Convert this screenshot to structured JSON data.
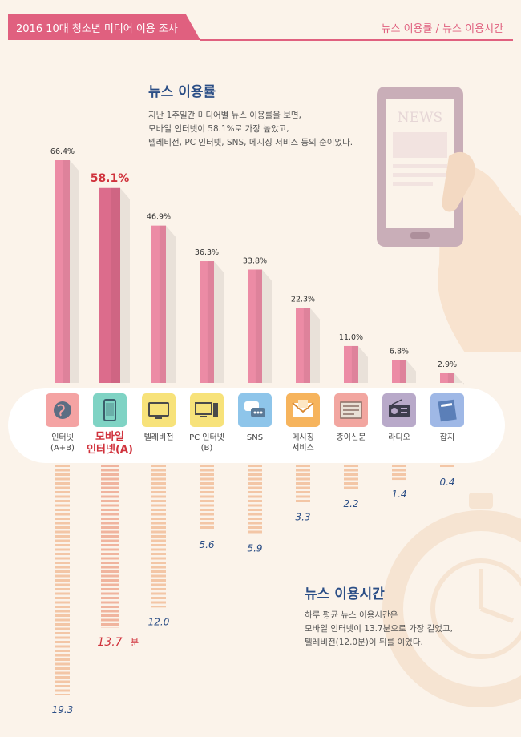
{
  "header": {
    "title": "2016 10대 청소년 미디어 이용 조사",
    "right": "뉴스 이용률 / 뉴스 이용시간"
  },
  "colors": {
    "accent": "#e0607f",
    "title_blue": "#2b4e86",
    "highlight_red": "#d0323c",
    "bar_pink": "#ec8ba5",
    "bar_pink_dark": "#dc6c8c",
    "stripe": "#f3c6a6"
  },
  "usage_section": {
    "title": "뉴스 이용률",
    "desc": [
      "지난 1주일간 미디어별 뉴스 이용률을 보면,",
      "모바일 인터넷이 58.1%로 가장 높았고,",
      "텔레비전, PC 인터넷, SNS, 메시징 서비스 등의 순이었다."
    ],
    "illustration_text": "NEWS"
  },
  "time_section": {
    "title": "뉴스 이용시간",
    "desc": [
      "하루 평균 뉴스 이용시간은",
      "모바일 인터넷이 13.7분으로 가장 길었고,",
      "텔레비전(12.0분)이 뒤를 이었다."
    ],
    "unit": "분"
  },
  "media": [
    {
      "label": [
        "인터넷",
        "(A+B)"
      ],
      "icon": "globe-icon",
      "icon_color": "#f4a3a3"
    },
    {
      "label": [
        "모바일",
        "인터넷(A)"
      ],
      "icon": "smartphone-icon",
      "icon_color": "#7fd3c4",
      "highlight": true
    },
    {
      "label": [
        "텔레비전"
      ],
      "icon": "television-icon",
      "icon_color": "#f7e27a"
    },
    {
      "label": [
        "PC 인터넷",
        "(B)"
      ],
      "icon": "desktop-pc-icon",
      "icon_color": "#f7e27a"
    },
    {
      "label": [
        "SNS"
      ],
      "icon": "chat-bubbles-icon",
      "icon_color": "#8ec5ea"
    },
    {
      "label": [
        "메시징",
        "서비스"
      ],
      "icon": "envelope-icon",
      "icon_color": "#f6b45d"
    },
    {
      "label": [
        "종이신문"
      ],
      "icon": "newspaper-icon",
      "icon_color": "#f2a6a0"
    },
    {
      "label": [
        "라디오"
      ],
      "icon": "radio-icon",
      "icon_color": "#b8a9c9"
    },
    {
      "label": [
        "잡지"
      ],
      "icon": "magazine-icon",
      "icon_color": "#9fb8e6"
    }
  ],
  "chart_data": [
    {
      "type": "bar",
      "title": "뉴스 이용률",
      "categories": [
        "인터넷(A+B)",
        "모바일 인터넷(A)",
        "텔레비전",
        "PC 인터넷(B)",
        "SNS",
        "메시징 서비스",
        "종이신문",
        "라디오",
        "잡지"
      ],
      "values": [
        66.4,
        58.1,
        46.9,
        36.3,
        33.8,
        22.3,
        11.0,
        6.8,
        2.9
      ],
      "value_labels": [
        "66.4%",
        "58.1%",
        "46.9%",
        "36.3%",
        "33.8%",
        "22.3%",
        "11.0%",
        "6.8%",
        "2.9%"
      ],
      "highlight_index": 1,
      "ylim": [
        0,
        66.4
      ]
    },
    {
      "type": "bar",
      "title": "뉴스 이용시간",
      "categories": [
        "인터넷(A+B)",
        "모바일 인터넷(A)",
        "텔레비전",
        "PC 인터넷(B)",
        "SNS",
        "메시징 서비스",
        "종이신문",
        "라디오",
        "잡지"
      ],
      "values": [
        19.3,
        13.7,
        12.0,
        5.6,
        5.9,
        3.3,
        2.2,
        1.4,
        0.4
      ],
      "value_labels": [
        "19.3",
        "13.7",
        "12.0",
        "5.6",
        "5.9",
        "3.3",
        "2.2",
        "1.4",
        "0.4"
      ],
      "highlight_index": 1,
      "orientation": "downward",
      "ylim": [
        0,
        19.3
      ]
    }
  ]
}
